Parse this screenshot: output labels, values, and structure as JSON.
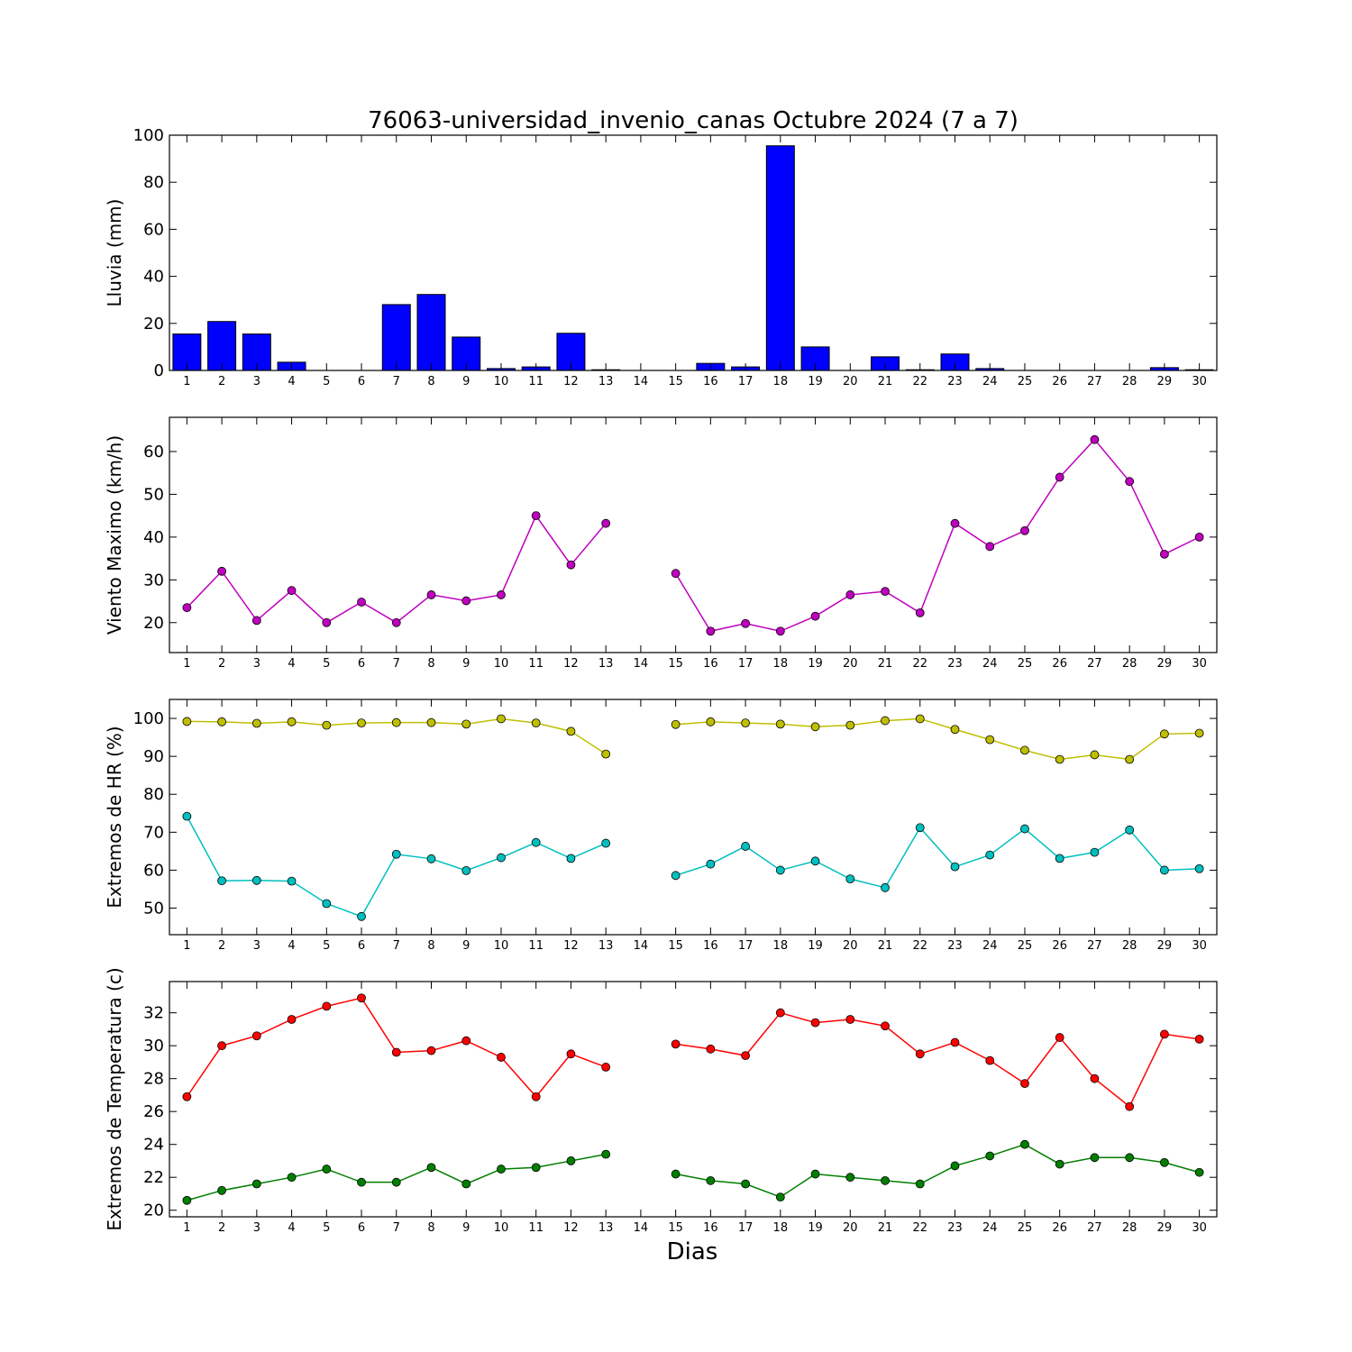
{
  "chart_data": {
    "title": "76063-universidad_invenio_canas Octubre 2024  (7 a 7)",
    "xlabel": "Dias",
    "x_ticks": [
      "1",
      "2",
      "3",
      "4",
      "5",
      "6",
      "7",
      "8",
      "9",
      "10",
      "11",
      "12",
      "13",
      "14",
      "15",
      "16",
      "17",
      "18",
      "19",
      "20",
      "21",
      "22",
      "23",
      "24",
      "25",
      "26",
      "27",
      "28",
      "29",
      "30"
    ],
    "panels": [
      {
        "id": "lluvia",
        "type": "bar",
        "ylabel": "Lluvia (mm)",
        "ylim": [
          0,
          100
        ],
        "yticks": [
          0,
          20,
          40,
          60,
          80,
          100
        ],
        "colors": [
          "#0000ff"
        ],
        "series": [
          {
            "values": [
              15.5,
              20.8,
              15.5,
              3.5,
              0,
              0,
              28,
              32.3,
              14.2,
              0.8,
              1.5,
              15.8,
              0.3,
              0,
              0,
              3,
              1.5,
              95.5,
              10,
              0,
              5.8,
              0.3,
              7,
              0.8,
              0,
              0,
              0,
              0,
              1.2,
              0.3
            ]
          }
        ]
      },
      {
        "id": "viento",
        "type": "line",
        "ylabel": "Viento Maximo (km/h)",
        "ylim": [
          13,
          68
        ],
        "yticks": [
          20,
          30,
          40,
          50,
          60
        ],
        "colors": [
          "#bf00bf"
        ],
        "series": [
          {
            "values": [
              23.5,
              32,
              20.5,
              27.5,
              20,
              24.8,
              20,
              26.5,
              25.1,
              26.5,
              45,
              33.5,
              43.2,
              null,
              31.5,
              18,
              19.8,
              18,
              21.5,
              26.5,
              27.3,
              22.3,
              43.2,
              37.8,
              41.5,
              54,
              62.8,
              53,
              36,
              40
            ]
          }
        ]
      },
      {
        "id": "hr",
        "type": "line",
        "ylabel": "Extremos de HR (%)",
        "ylim": [
          43,
          105
        ],
        "yticks": [
          50,
          60,
          70,
          80,
          90,
          100
        ],
        "colors": [
          "#bfbf00",
          "#00bfbf"
        ],
        "series": [
          {
            "values": [
              99.2,
              99.1,
              98.7,
              99.1,
              98.2,
              98.8,
              98.9,
              98.9,
              98.5,
              99.9,
              98.8,
              96.6,
              90.6,
              null,
              98.4,
              99.1,
              98.8,
              98.5,
              97.8,
              98.2,
              99.4,
              99.9,
              97.1,
              94.4,
              91.6,
              89.2,
              90.4,
              89.2,
              95.9,
              96.1
            ]
          },
          {
            "values": [
              74.2,
              57.2,
              57.3,
              57.1,
              51.2,
              47.8,
              64.2,
              63,
              59.9,
              63.3,
              67.3,
              63.1,
              67.1,
              null,
              58.6,
              61.6,
              66.3,
              60,
              62.4,
              57.7,
              55.4,
              71.2,
              60.9,
              64,
              70.9,
              63.1,
              64.7,
              70.6,
              60,
              60.4
            ]
          }
        ]
      },
      {
        "id": "temp",
        "type": "line",
        "ylabel": "Extremos de Temperatura (c)",
        "ylim": [
          19.6,
          33.9
        ],
        "yticks": [
          20,
          22,
          24,
          26,
          28,
          30,
          32
        ],
        "colors": [
          "#ff0000",
          "#007f00"
        ],
        "series": [
          {
            "values": [
              26.9,
              30,
              30.6,
              31.6,
              32.4,
              32.9,
              29.6,
              29.7,
              30.3,
              29.3,
              26.9,
              29.5,
              28.7,
              null,
              30.1,
              29.8,
              29.4,
              32,
              31.4,
              31.6,
              31.2,
              29.5,
              30.2,
              29.1,
              27.7,
              30.5,
              28,
              26.3,
              30.7,
              30.4
            ]
          },
          {
            "values": [
              20.6,
              21.2,
              21.6,
              22,
              22.5,
              21.7,
              21.7,
              22.6,
              21.6,
              22.5,
              22.6,
              23,
              23.4,
              null,
              22.2,
              21.8,
              21.6,
              20.8,
              22.2,
              22,
              21.8,
              21.6,
              22.7,
              23.3,
              24,
              22.8,
              23.2,
              23.2,
              22.9,
              22.3
            ]
          }
        ]
      }
    ]
  }
}
